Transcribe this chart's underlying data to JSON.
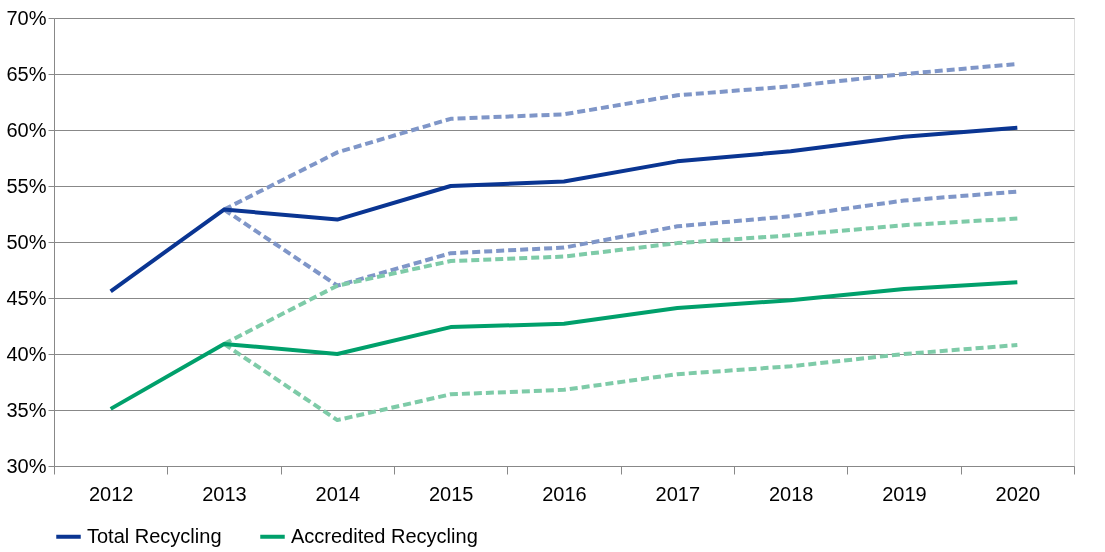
{
  "chart_data": {
    "type": "line",
    "categories": [
      "2012",
      "2013",
      "2014",
      "2015",
      "2016",
      "2017",
      "2018",
      "2019",
      "2020"
    ],
    "series": [
      {
        "color": "#7f96c8",
        "line_style": "dashed",
        "values": [
          null,
          52.9,
          58.0,
          61.0,
          61.4,
          63.1,
          63.9,
          65.0,
          65.9
        ]
      },
      {
        "color": "#7f96c8",
        "line_style": "dashed",
        "values": [
          null,
          52.9,
          46.1,
          49.0,
          49.5,
          51.4,
          52.3,
          53.7,
          54.5
        ]
      },
      {
        "color": "#7ecba8",
        "line_style": "dashed",
        "values": [
          null,
          40.9,
          46.1,
          48.3,
          48.7,
          49.9,
          50.6,
          51.5,
          52.1
        ]
      },
      {
        "color": "#7ecba8",
        "line_style": "dashed",
        "values": [
          null,
          40.9,
          34.1,
          36.4,
          36.8,
          38.2,
          38.9,
          40.0,
          40.8
        ]
      },
      {
        "name": "Total Recycling",
        "color": "#0a3592",
        "line_style": "solid",
        "values": [
          45.6,
          52.9,
          52.0,
          55.0,
          55.4,
          57.2,
          58.1,
          59.4,
          60.2
        ]
      },
      {
        "name": "Accredited Recycling",
        "color": "#00a06b",
        "line_style": "solid",
        "values": [
          35.1,
          40.9,
          40.0,
          42.4,
          42.7,
          44.1,
          44.8,
          45.8,
          46.4
        ]
      }
    ],
    "ylim": [
      30,
      70
    ],
    "yticks": [
      {
        "value": 30,
        "label": "30%"
      },
      {
        "value": 35,
        "label": "35%"
      },
      {
        "value": 40,
        "label": "40%"
      },
      {
        "value": 45,
        "label": "45%"
      },
      {
        "value": 50,
        "label": "50%"
      },
      {
        "value": 55,
        "label": "55%"
      },
      {
        "value": 60,
        "label": "60%"
      },
      {
        "value": 65,
        "label": "65%"
      },
      {
        "value": 70,
        "label": "70%"
      }
    ],
    "grid": "y",
    "legend": "bottom",
    "marker": "none"
  }
}
